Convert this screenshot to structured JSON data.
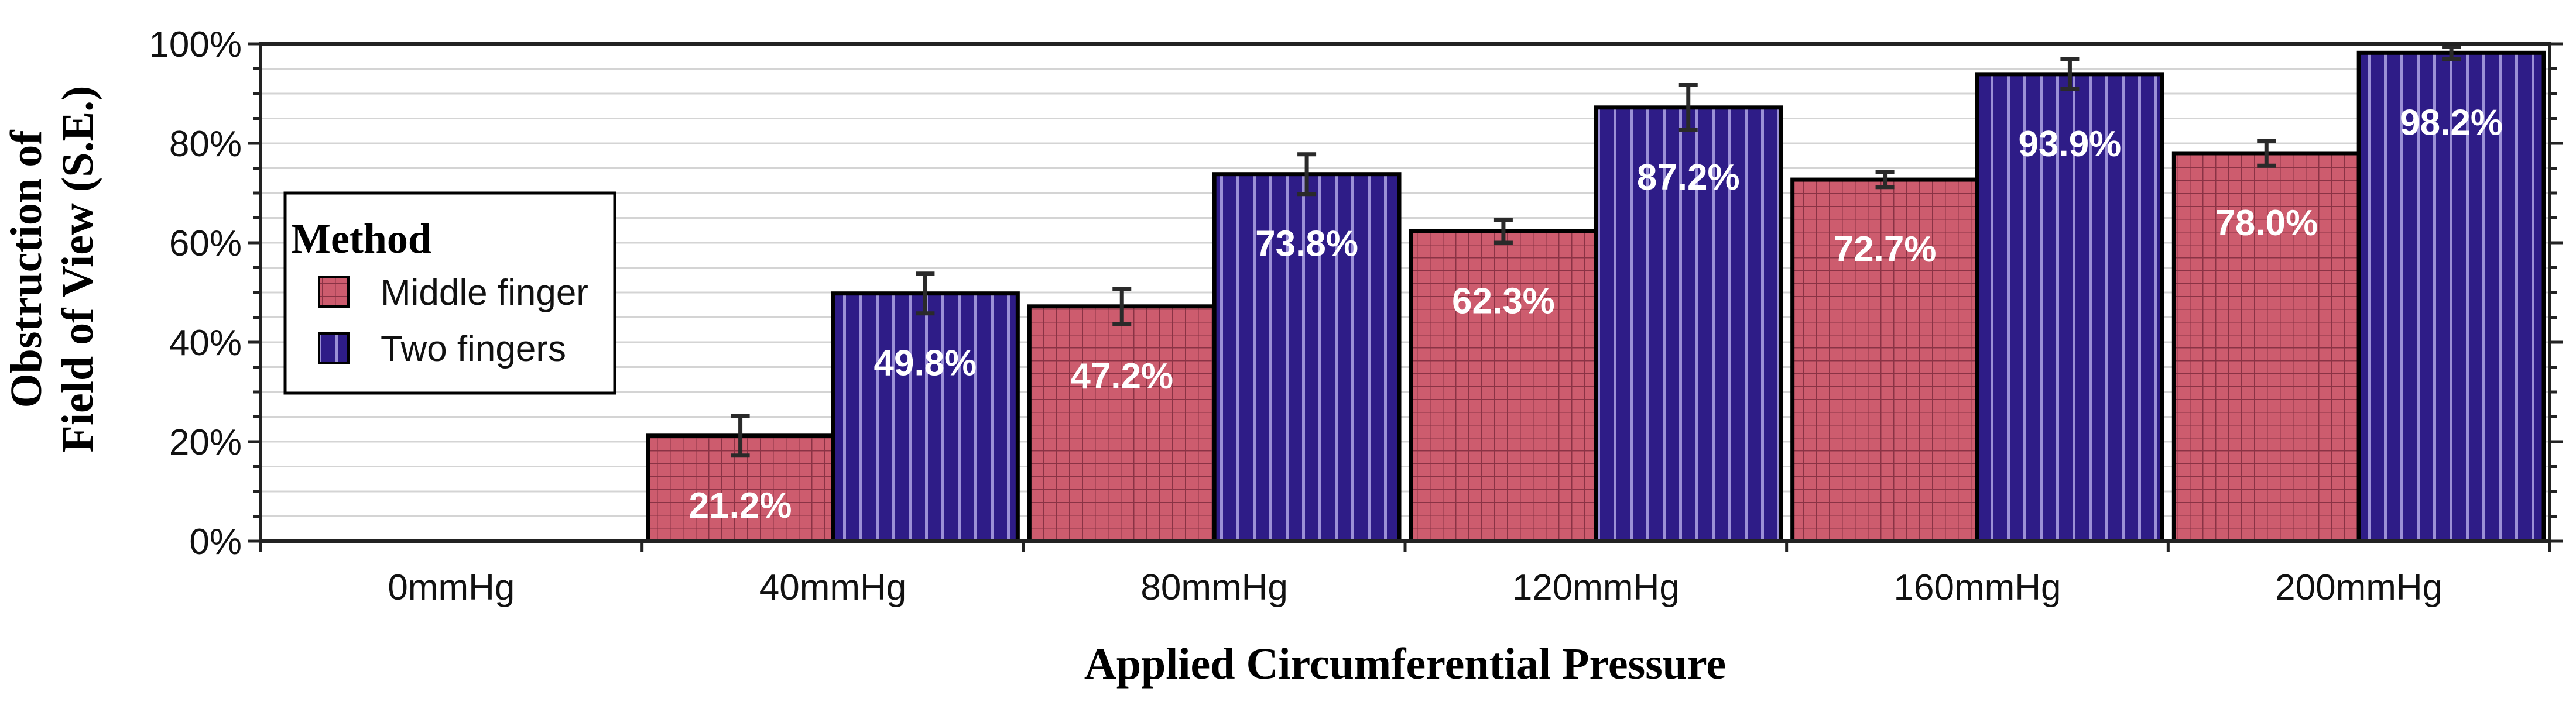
{
  "chart_data": {
    "type": "bar",
    "categories": [
      "0mmHg",
      "40mmHg",
      "80mmHg",
      "120mmHg",
      "160mmHg",
      "200mmHg"
    ],
    "series": [
      {
        "name": "Middle finger",
        "color": "#cd5c6e",
        "pattern": "grid",
        "values": [
          0,
          21.2,
          47.2,
          62.3,
          72.7,
          78.0
        ],
        "errors": [
          0,
          4.0,
          3.5,
          2.3,
          1.5,
          2.5
        ],
        "labels": [
          "",
          "21.2%",
          "47.2%",
          "62.3%",
          "72.7%",
          "78.0%"
        ]
      },
      {
        "name": "Two fingers",
        "color": "#2e1c87",
        "pattern": "vertical-stripes",
        "values": [
          0,
          49.8,
          73.8,
          87.2,
          93.9,
          98.2
        ],
        "errors": [
          0,
          4.0,
          4.0,
          4.5,
          3.0,
          1.2
        ],
        "labels": [
          "",
          "49.8%",
          "73.8%",
          "87.2%",
          "93.9%",
          "98.2%"
        ]
      }
    ],
    "ylim": [
      0,
      100
    ],
    "yticks": [
      0,
      20,
      40,
      60,
      80,
      100
    ],
    "ytick_labels": [
      "0%",
      "20%",
      "40%",
      "60%",
      "80%",
      "100%"
    ],
    "xlabel": "Applied Circumferential Pressure",
    "ylabel_line1": "Obstruction of",
    "ylabel_line2": "Field of View (S.E.)",
    "legend": {
      "title": "Method",
      "placement": "left",
      "entries": [
        "Middle finger",
        "Two fingers"
      ]
    },
    "grid": "horizontal minor"
  }
}
